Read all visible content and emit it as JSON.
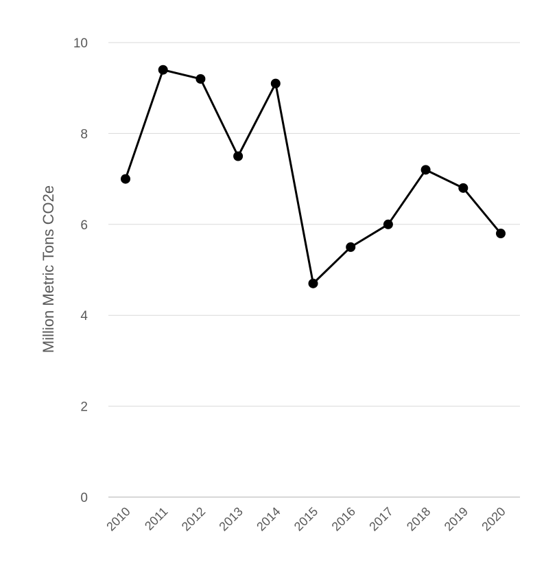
{
  "chart_data": {
    "type": "line",
    "title": "",
    "xlabel": "",
    "ylabel": "Million Metric Tons CO2e",
    "categories": [
      "2010",
      "2011",
      "2012",
      "2013",
      "2014",
      "2015",
      "2016",
      "2017",
      "2018",
      "2019",
      "2020"
    ],
    "values": [
      7.0,
      9.4,
      9.2,
      7.5,
      9.1,
      4.7,
      5.5,
      6.0,
      7.2,
      6.8,
      5.8
    ],
    "ylim": [
      0,
      10
    ],
    "yticks": [
      "0",
      "2",
      "4",
      "6",
      "8",
      "10"
    ],
    "grid": true,
    "legend": "none",
    "colors": {
      "line": "#000000",
      "marker": "#000000",
      "grid": "#d9d9d9",
      "text": "#595959"
    }
  }
}
